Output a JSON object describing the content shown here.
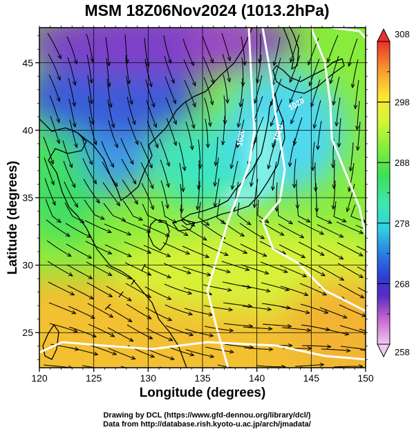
{
  "title": "MSM 18Z06Nov2024 (1013.2hPa)",
  "x_axis": {
    "label": "Longitude (degrees)",
    "range": [
      120,
      150
    ],
    "ticks": [
      120,
      125,
      130,
      135,
      140,
      145,
      150
    ]
  },
  "y_axis": {
    "label": "Latitude  (degrees)",
    "range": [
      22.4,
      47.6
    ],
    "ticks": [
      25,
      30,
      35,
      40,
      45
    ]
  },
  "colorbar": {
    "range": [
      258,
      308
    ],
    "ticks": [
      258,
      268,
      278,
      288,
      298,
      308
    ],
    "minor_ticks": [
      263,
      273,
      283,
      293,
      303
    ],
    "extend": "both",
    "colors": {
      "258": "#f0c8f0",
      "262": "#c86ad2",
      "266": "#5a2bbf",
      "269": "#2f3cd8",
      "273": "#2a7de6",
      "277": "#2fd0e0",
      "281": "#3ce8b2",
      "286": "#3ee056",
      "291": "#8cf03a",
      "295": "#d8f536",
      "299": "#fde535",
      "303": "#f8a030",
      "308": "#e8312a"
    }
  },
  "field_colors": {
    "siberia": "#7f3fc8",
    "manchuria": "#3a5bd8",
    "korea": "#3f9be8",
    "ne_japan": "#50d8ee",
    "japan_sea": "#3ee6c0",
    "yellow_sea": "#40de64",
    "mid": "#88ec3c",
    "subtropic": "#d6f238",
    "south": "#f3c032",
    "southeast": "#f2b430"
  },
  "contours": [
    {
      "label": "1020",
      "color": "#ffffff"
    },
    {
      "label": "1020",
      "color": "#ffffff"
    },
    {
      "label": "1020",
      "color": "#ffffff"
    }
  ],
  "credits": [
    "Drawing by DCL (https://www.gfd-dennou.org/library/dcl/)",
    "Data from http://database.rish.kyoto-u.ac.jp/arch/jmadata/"
  ]
}
